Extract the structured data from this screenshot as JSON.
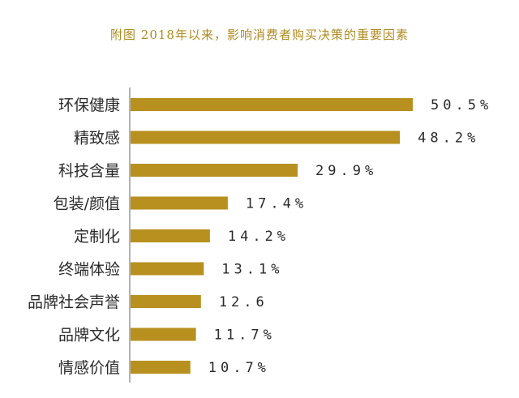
{
  "chart_data": {
    "type": "bar",
    "orientation": "horizontal",
    "title": "附图 2018年以来，影响消费者购买决策的重要因素",
    "categories": [
      "环保健康",
      "精致感",
      "科技含量",
      "包装/颜值",
      "定制化",
      "终端体验",
      "品牌社会声誉",
      "品牌文化",
      "情感价值"
    ],
    "values": [
      50.5,
      48.2,
      29.9,
      17.4,
      14.2,
      13.1,
      12.6,
      11.7,
      10.7
    ],
    "value_labels": [
      "50.5%",
      "48.2%",
      "29.9%",
      "17.4%",
      "14.2%",
      "13.1%",
      "12.6",
      "11.7%",
      "10.7%"
    ],
    "xlim": [
      0,
      50.5
    ],
    "grid": false,
    "bar_color": "#b8901f",
    "axis_color": "#9a9a9a"
  }
}
